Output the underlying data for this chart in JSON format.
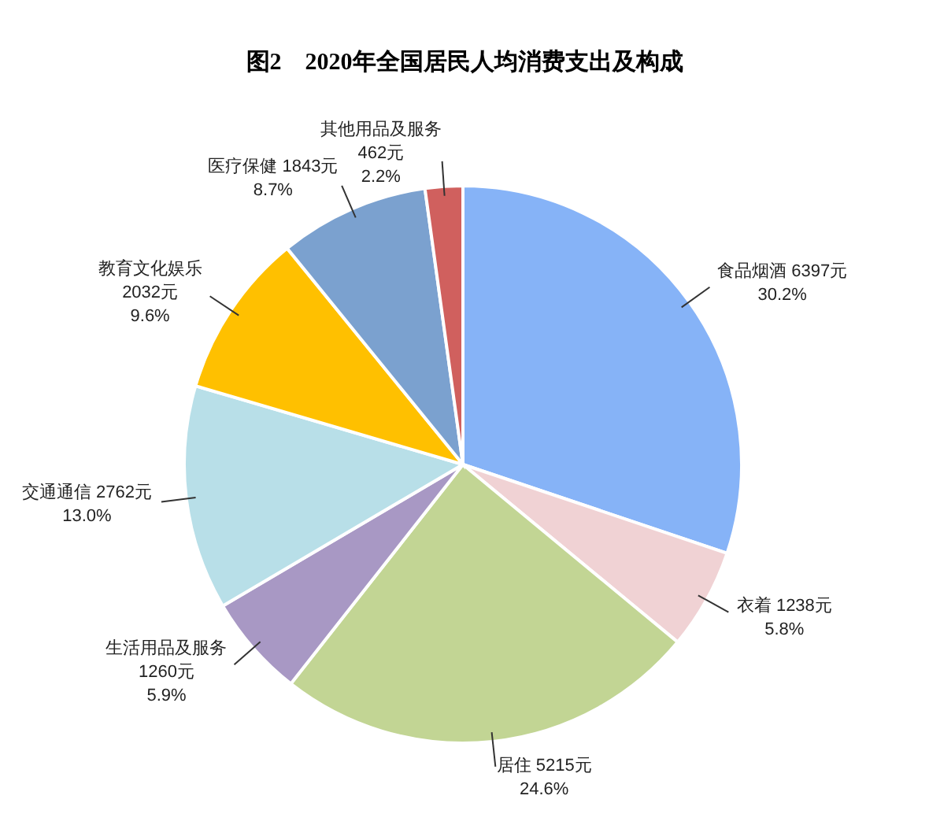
{
  "chart_data": {
    "type": "pie",
    "title": "图2　2020年全国居民人均消费支出及构成",
    "categories": [
      "食品烟酒",
      "衣着",
      "居住",
      "生活用品及服务",
      "交通通信",
      "教育文化娱乐",
      "医疗保健",
      "其他用品及服务"
    ],
    "values": [
      6397,
      1238,
      5215,
      1260,
      2762,
      2032,
      1843,
      462
    ],
    "value_labels": [
      "6397元\n30.2%",
      "1238元\n5.8%",
      "5215元\n24.6%",
      "1260元\n5.9%",
      "2762元\n13.0%",
      "2032元\n9.6%",
      "1843元\n8.7%",
      "462元\n2.2%"
    ],
    "colors": [
      "#86b3f7",
      "#f0d2d4",
      "#c2d594",
      "#a898c4",
      "#b8dfe8",
      "#ffc000",
      "#7ba1cf",
      "#d0605e"
    ]
  }
}
